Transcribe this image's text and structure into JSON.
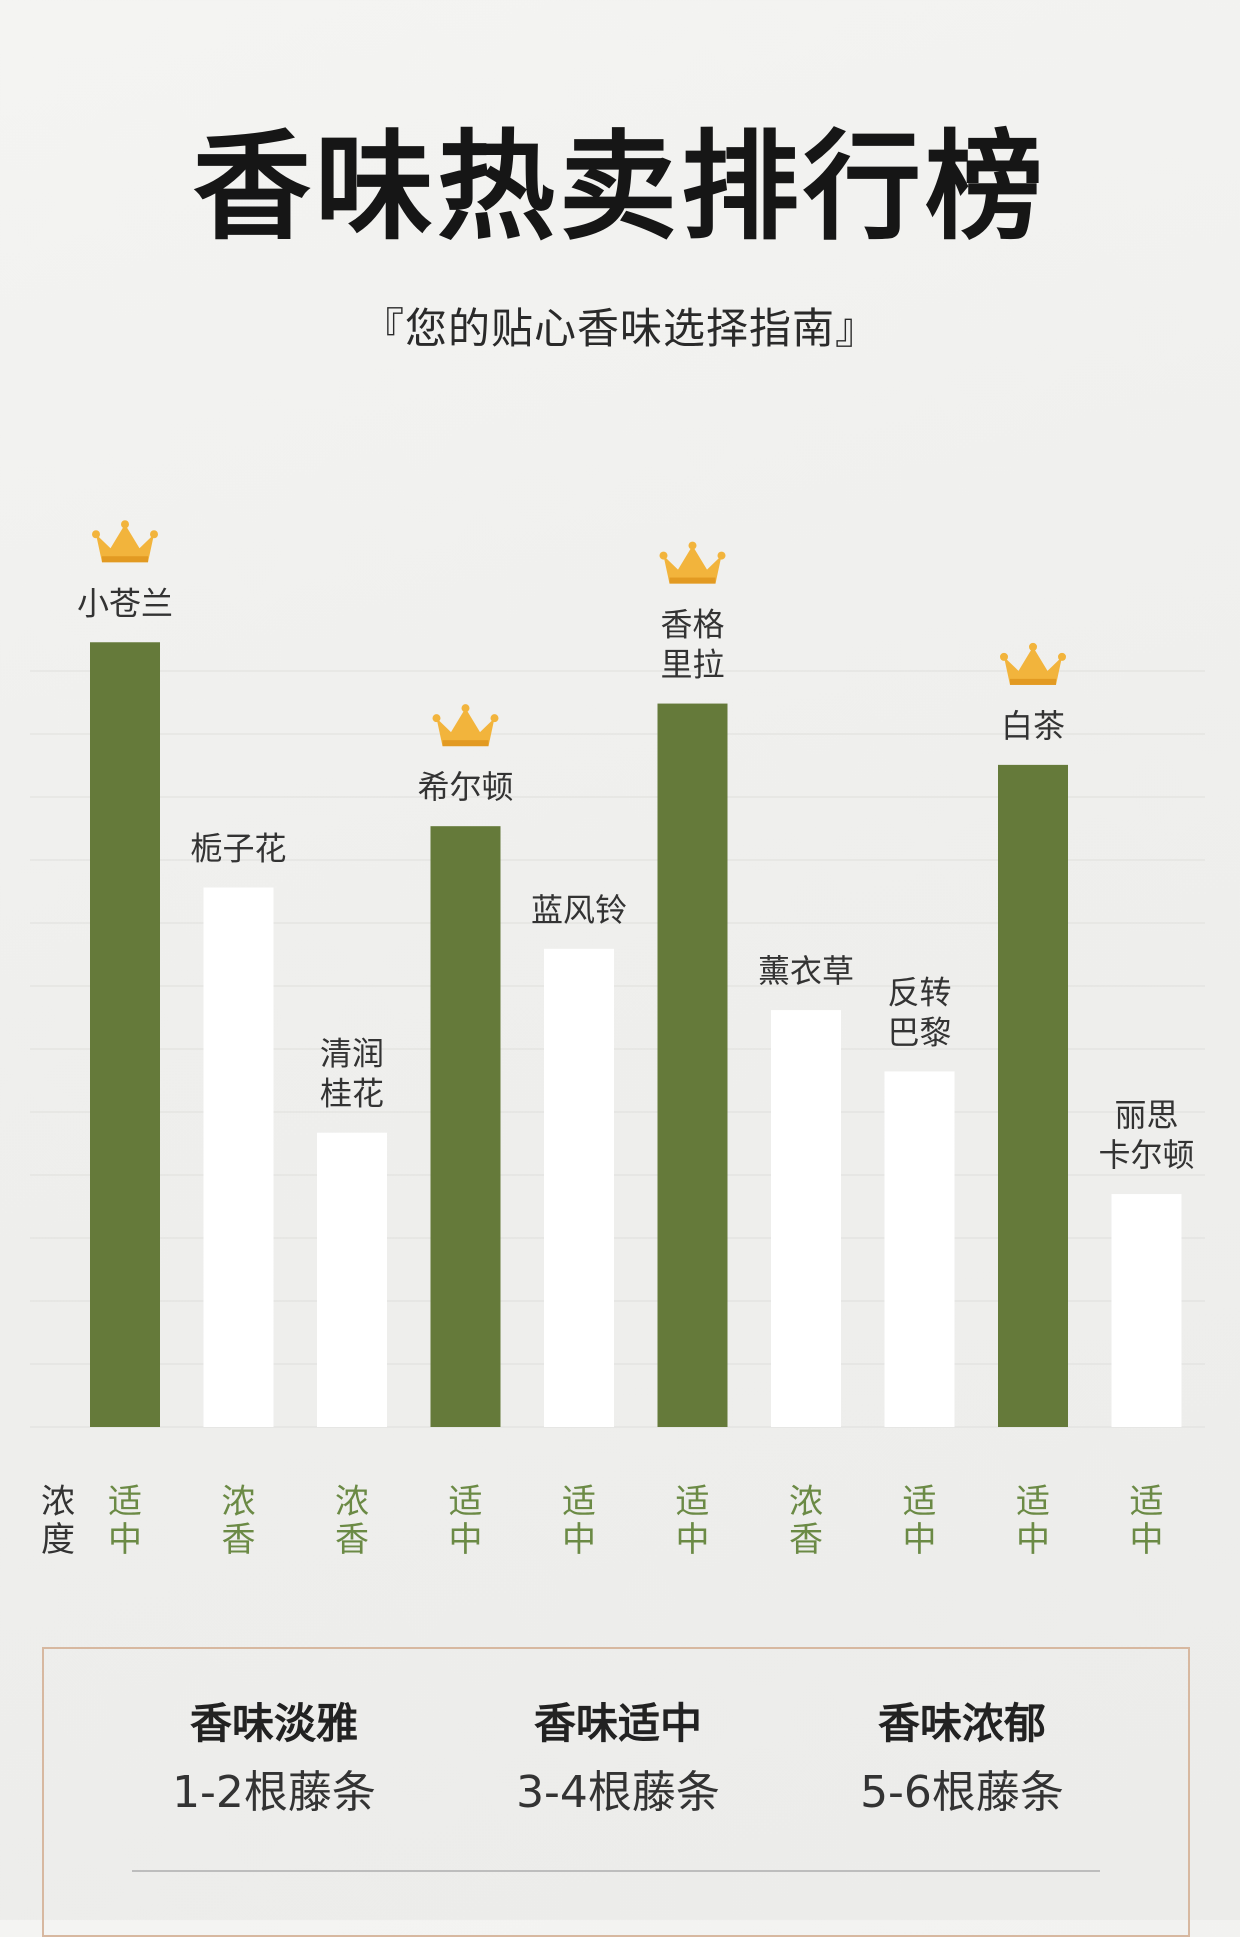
{
  "header": {
    "title": "香味热卖排行榜",
    "subtitle": "『您的贴心香味选择指南』"
  },
  "colors": {
    "highlight_bar": "#657a3a",
    "normal_bar": "#ffffff",
    "density_text": "#6b8a45",
    "crown": "#f2b43c"
  },
  "chart_data": {
    "type": "bar",
    "categories": [
      [
        "小苍兰"
      ],
      [
        "栀子花"
      ],
      [
        "清润",
        "桂花"
      ],
      [
        "希尔顿"
      ],
      [
        "蓝风铃"
      ],
      [
        "香格",
        "里拉"
      ],
      [
        "薰衣草"
      ],
      [
        "反转",
        "巴黎"
      ],
      [
        "白茶"
      ],
      [
        "丽思",
        "卡尔顿"
      ]
    ],
    "values": [
      12.8,
      8.8,
      4.8,
      9.8,
      7.8,
      11.8,
      6.8,
      5.8,
      10.8,
      3.8
    ],
    "highlighted": [
      true,
      false,
      false,
      true,
      false,
      true,
      false,
      false,
      true,
      false
    ],
    "crowned": [
      true,
      false,
      false,
      true,
      false,
      true,
      false,
      false,
      true,
      false
    ],
    "ylim": [
      0,
      13
    ],
    "grid": true,
    "density_label": [
      "浓",
      "度"
    ],
    "density": [
      [
        "适",
        "中"
      ],
      [
        "浓",
        "香"
      ],
      [
        "浓",
        "香"
      ],
      [
        "适",
        "中"
      ],
      [
        "适",
        "中"
      ],
      [
        "适",
        "中"
      ],
      [
        "浓",
        "香"
      ],
      [
        "适",
        "中"
      ],
      [
        "适",
        "中"
      ],
      [
        "适",
        "中"
      ]
    ]
  },
  "guide": [
    {
      "title": "香味淡雅",
      "sub": "1-2根藤条"
    },
    {
      "title": "香味适中",
      "sub": "3-4根藤条"
    },
    {
      "title": "香味浓郁",
      "sub": "5-6根藤条"
    }
  ]
}
